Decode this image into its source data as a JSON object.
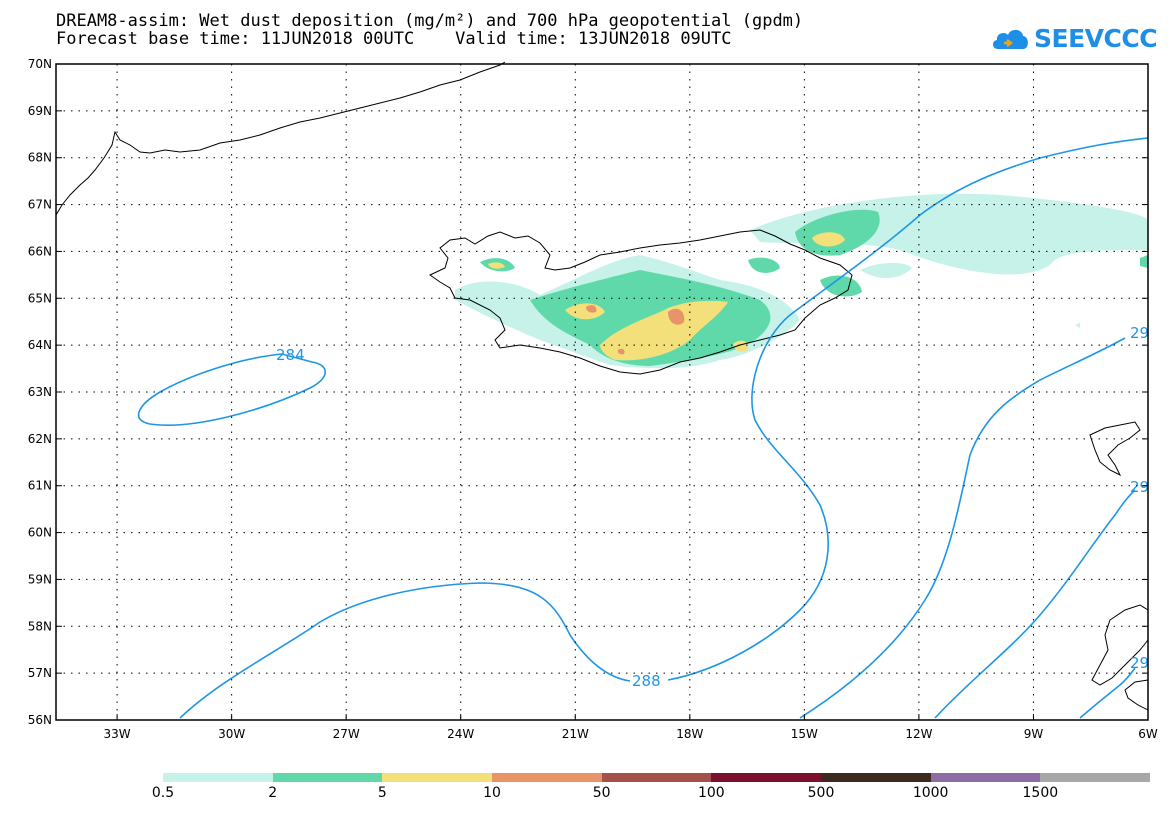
{
  "title_line1": "DREAM8-assim: Wet dust deposition (mg/m²) and 700 hPa geopotential (gpdm)",
  "title_line2": "Forecast base time: 11JUN2018 00UTC    Valid time: 13JUN2018 09UTC",
  "logo_text": "SEEVCCC",
  "lat_labels": [
    "70N",
    "69N",
    "68N",
    "67N",
    "66N",
    "65N",
    "64N",
    "63N",
    "62N",
    "61N",
    "60N",
    "59N",
    "58N",
    "57N",
    "56N"
  ],
  "lon_labels": [
    "33W",
    "30W",
    "27W",
    "24W",
    "21W",
    "18W",
    "15W",
    "12W",
    "9W",
    "6W"
  ],
  "contour_labels": [
    "284",
    "288",
    "29",
    "29",
    "29"
  ],
  "colorbar": {
    "labels": [
      "0.5",
      "2",
      "5",
      "10",
      "50",
      "100",
      "500",
      "1000",
      "1500"
    ],
    "colors": [
      "#c6f2ea",
      "#5fd9aa",
      "#f3e07a",
      "#e9936b",
      "#a55049",
      "#7a0f2e",
      "#3c2a20",
      "#8d6ba3",
      "#a7a7a7"
    ]
  },
  "colors": {
    "contour": "#1e96e6",
    "coast": "#000000",
    "frame": "#000000"
  }
}
